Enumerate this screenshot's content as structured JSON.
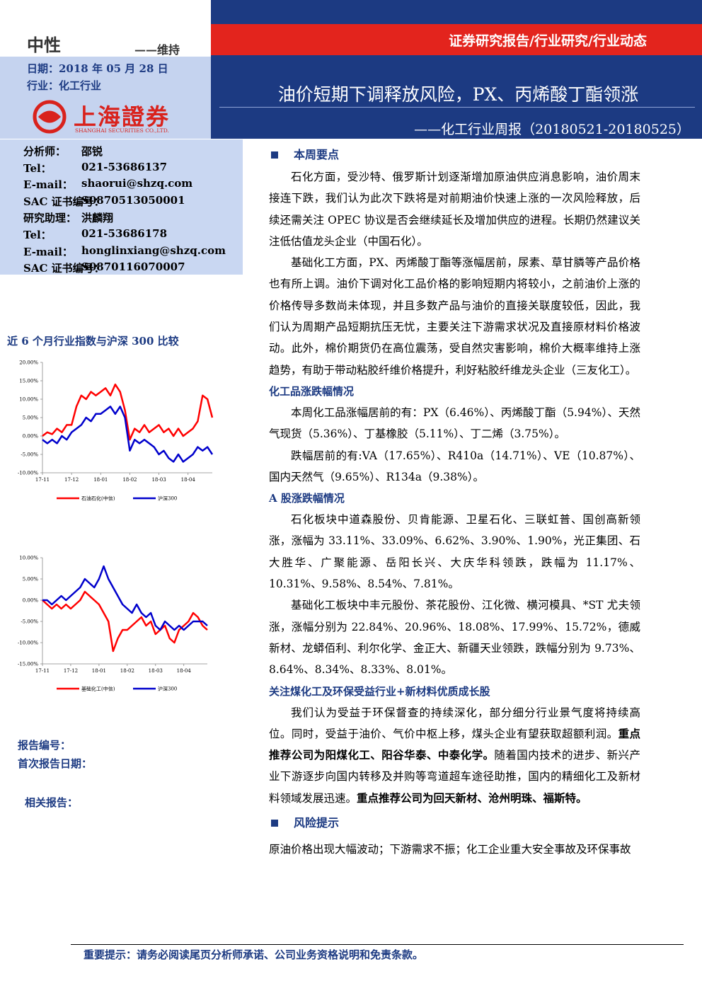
{
  "header": {
    "rating": "中性",
    "rating_action": "——维持",
    "date": "日期：2018 年 05 月 28 日",
    "industry": "行业：化工行业",
    "logo_cn": "上海證券",
    "logo_en": "SHANGHAI SECURITIES CO.,LTD.",
    "report_type": "证券研究报告/行业研究/行业动态",
    "title": "油价短期下调释放风险，PX、丙烯酸丁酯领涨",
    "subtitle": "——化工行业周报（20180521-20180525）"
  },
  "analysts": [
    [
      "分析师：",
      "邵锐"
    ],
    [
      "Tel：",
      "021-53686137"
    ],
    [
      "E-mail：",
      "shaorui@shzq.com"
    ],
    [
      "SAC 证书编号：",
      "S0870513050001"
    ],
    [
      "研究助理：",
      "洪麟翔"
    ],
    [
      "Tel：",
      "021-53686178"
    ],
    [
      "E-mail：",
      "honglinxiang@shzq.com"
    ],
    [
      "SAC 证书编号：",
      "S0870116070007"
    ]
  ],
  "sidebar_chart_title": "近 6 个月行业指数与沪深 300 比较",
  "chart_data": [
    {
      "type": "line",
      "categories": [
        "17-11",
        null,
        null,
        null,
        null,
        null,
        "17-12",
        null,
        null,
        null,
        null,
        null,
        "18-01",
        null,
        null,
        null,
        null,
        null,
        "18-02",
        null,
        null,
        null,
        null,
        null,
        "18-03",
        null,
        null,
        null,
        null,
        null,
        "18-04",
        null,
        null,
        null,
        null,
        null
      ],
      "ylim": [
        -10,
        20
      ],
      "yticks": [
        {
          "value": -10,
          "label": "-10.00%"
        },
        {
          "value": -5,
          "label": "-5.00%"
        },
        {
          "value": 0,
          "label": "0.00%"
        },
        {
          "value": 5,
          "label": "5.00%"
        },
        {
          "value": 10,
          "label": "10.00%"
        },
        {
          "value": 15,
          "label": "15.00%"
        },
        {
          "value": 20,
          "label": "20.00%"
        }
      ],
      "series": [
        {
          "name": "石油石化(中信)",
          "color": "#ff0000",
          "values": [
            0,
            1,
            0.5,
            2,
            1,
            3,
            3,
            8,
            11,
            10,
            12,
            11,
            12,
            13,
            11,
            14,
            12,
            7,
            -1,
            2,
            1,
            3,
            1,
            2,
            3,
            1,
            2,
            0,
            2,
            0,
            1,
            2,
            4,
            11,
            10,
            5
          ]
        },
        {
          "name": "沪深300",
          "color": "#0000cc",
          "values": [
            -1,
            -2,
            -1,
            -2,
            0,
            -1,
            1,
            2,
            3,
            5,
            4,
            6,
            6,
            7,
            8,
            6,
            8,
            5,
            -4,
            -1,
            -2,
            -1,
            -2,
            -3,
            -5,
            -4,
            -6,
            -7,
            -5,
            -7,
            -6,
            -5,
            -3,
            -4,
            -3,
            -5
          ]
        }
      ]
    },
    {
      "type": "line",
      "categories": [
        "17-11",
        null,
        null,
        null,
        null,
        null,
        "17-12",
        null,
        null,
        null,
        null,
        null,
        "18-01",
        null,
        null,
        null,
        null,
        null,
        "18-02",
        null,
        null,
        null,
        null,
        null,
        "18-03",
        null,
        null,
        null,
        null,
        null,
        "18-04",
        null,
        null,
        null,
        null,
        null
      ],
      "ylim": [
        -15,
        10
      ],
      "yticks": [
        {
          "value": -15,
          "label": "-15.00%"
        },
        {
          "value": -10,
          "label": "-10.00%"
        },
        {
          "value": -5,
          "label": "-5.00%"
        },
        {
          "value": 0,
          "label": "0.00%"
        },
        {
          "value": 5,
          "label": "5.00%"
        },
        {
          "value": 10,
          "label": "10.00%"
        }
      ],
      "series": [
        {
          "name": "基础化工(中信)",
          "color": "#ff0000",
          "values": [
            0,
            -1,
            -2,
            -1,
            -2,
            -1,
            -2,
            -1,
            0,
            2,
            1,
            0,
            -1,
            -3,
            -5,
            -12,
            -9,
            -7,
            -7,
            -6,
            -5,
            -4,
            -6,
            -5,
            -8,
            -7,
            -6,
            -9,
            -10,
            -7,
            -6,
            -5,
            -3,
            -4,
            -6,
            -7
          ]
        },
        {
          "name": "沪深300",
          "color": "#0000cc",
          "values": [
            0,
            0,
            -1,
            0,
            1,
            0,
            1,
            2,
            3,
            5,
            4,
            3,
            5,
            8,
            5,
            3,
            1,
            -1,
            -2,
            -3,
            -1,
            -3,
            -4,
            -3,
            -6,
            -7,
            -5,
            -6,
            -7,
            -6,
            -7,
            -6,
            -5,
            -5,
            -5,
            -6
          ]
        }
      ]
    }
  ],
  "report_meta": {
    "report_no": "报告编号：",
    "first_date": "首次报告日期：",
    "related": "相关报告："
  },
  "summary": {
    "heading": "本周要点",
    "paragraphs": [
      [
        "石化方面，受沙特、俄罗斯计划逐渐增加原油供应消息影响，油价周末接连下跌，我们认为此次下跌将是对前期油价快速上涨的一次风险释放，后续还需关注 OPEC 协议是否会继续延长及增加供应的进程。长期仍然建议关注低估值龙头企业（中国石化）。"
      ],
      [
        "基础化工方面，PX、丙烯酸丁酯等涨幅居前，尿素、草甘膦等产品价格也有所上调。油价下调对化工品价格的影响短期内将较小，之前油价上涨的价格传导多数尚未体现，并且多数产品与油价的直接关联度较低，因此，我们认为周期产品短期抗压无忧，主要关注下游需求状况及直接原材料价格波动。此外，棉价期货仍在高位震荡，受自然灾害影响，棉价大概率维持上涨趋势，有助于带动粘胶纤维价格提升，利好粘胶纤维龙头企业（三友化工）。"
      ]
    ],
    "subsections": [
      {
        "heading": "化工品涨跌幅情况",
        "paragraphs": [
          [
            "本周化工品涨幅居前的有：PX（6.46%）、丙烯酸丁酯（5.94%）、天然气现货（5.36%）、丁基橡胶（5.11%）、丁二烯（3.75%）。"
          ],
          [
            "跌幅居前的有:VA（17.65%）、R410a（14.71%）、VE（10.87%）、国内天然气（9.65%）、R134a（9.38%）。"
          ]
        ]
      },
      {
        "heading": "A 股涨跌幅情况",
        "paragraphs": [
          [
            "石化板块中道森股份、贝肯能源、卫星石化、三联虹普、国创高新领涨，涨幅为 33.11%、33.09%、6.62%、3.90%、1.90%，光正集团、石大胜华、广聚能源、岳阳长兴、大庆华科领跌，跌幅为 11.17%、10.31%、9.58%、8.54%、7.81%。"
          ],
          [
            "基础化工板块中丰元股份、茶花股份、江化微、横河模具、*ST 尤夫领涨，涨幅分别为 22.84%、20.96%、18.08%、17.99%、15.72%，德威新材、龙蟒佰利、利尔化学、金正大、新疆天业领跌，跌幅分别为 9.73%、8.64%、8.34%、8.33%、8.01%。"
          ]
        ]
      },
      {
        "heading": "关注煤化工及环保受益行业+新材料优质成长股",
        "paragraphs": [
          [
            "我们认为受益于环保督查的持续深化，部分细分行业景气度将持续高位。同时，受益于油价、气价中枢上移，煤头企业有望获取超额利润。",
            {
              "text": "重点推荐公司为阳煤化工、阳谷华泰、中泰化学。",
              "bold": true
            },
            "随着国内技术的进步、新兴产业下游逐步向国内转移及并购等弯道超车途径助推，国内的精细化工及新材料领域发展迅速。",
            {
              "text": "重点推荐公司为回天新材、沧州明珠、福斯特。",
              "bold": true
            }
          ]
        ]
      }
    ]
  },
  "risk": {
    "heading": "风险提示",
    "text": "原油价格出现大幅波动；下游需求不振；化工企业重大安全事故及环保事故"
  },
  "footer": "重要提示：请务必阅读尾页分析师承诺、公司业务资格说明和免责条款。"
}
